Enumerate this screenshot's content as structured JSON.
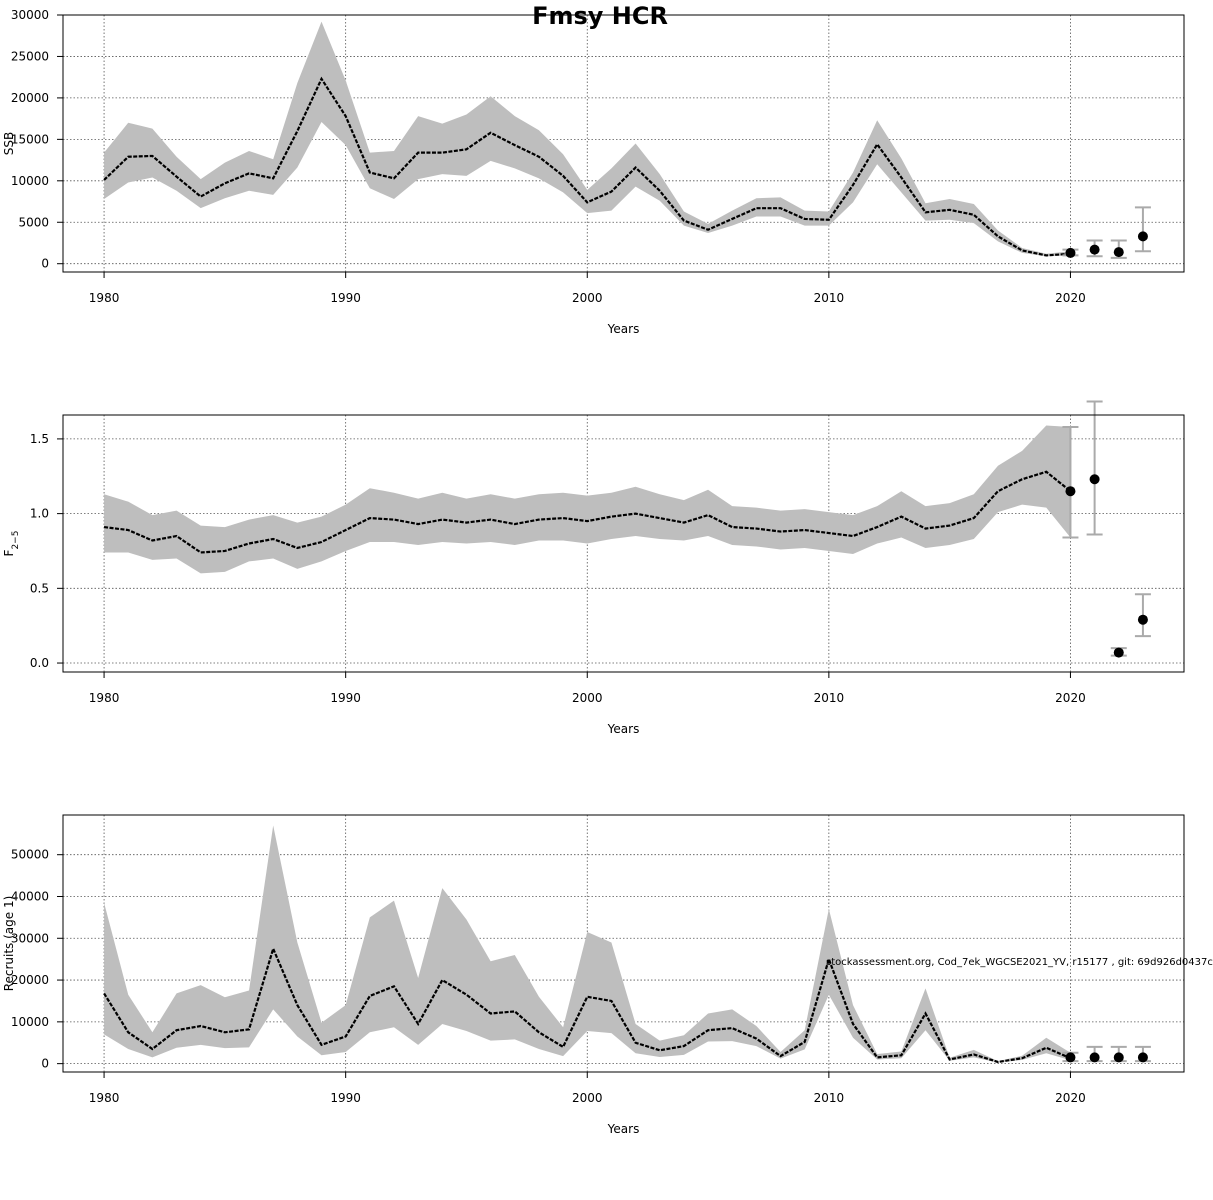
{
  "title": "Fmsy HCR",
  "footer_stamp": "stockassessment.org, Cod_7ek_WGCSE2021_YV, r15177 , git: 69d926d0437c",
  "colors": {
    "band": "#bebebe",
    "line": "#000000",
    "grid": "#555555",
    "errorbar": "#aaaaaa"
  },
  "chart_data": [
    {
      "type": "line",
      "xlabel": "Years",
      "ylabel": "SSB",
      "ylim": [
        -1000,
        30000
      ],
      "xlim": [
        1978.3,
        2024.7
      ],
      "yticks": [
        0,
        5000,
        10000,
        15000,
        20000,
        25000,
        30000
      ],
      "ytick_labels": [
        "0",
        "5000",
        "10000",
        "15000",
        "20000",
        "25000",
        "30000"
      ],
      "xticks": [
        1980,
        1990,
        2000,
        2010,
        2020
      ],
      "xtick_labels": [
        "1980",
        "1990",
        "2000",
        "2010",
        "2020"
      ],
      "grid": true,
      "years": [
        1980,
        1981,
        1982,
        1983,
        1984,
        1985,
        1986,
        1987,
        1988,
        1989,
        1990,
        1991,
        1992,
        1993,
        1994,
        1995,
        1996,
        1997,
        1998,
        1999,
        2000,
        2001,
        2002,
        2003,
        2004,
        2005,
        2006,
        2007,
        2008,
        2009,
        2010,
        2011,
        2012,
        2013,
        2014,
        2015,
        2016,
        2017,
        2018,
        2019,
        2020
      ],
      "estimate": [
        10100,
        12900,
        13000,
        10500,
        8100,
        9700,
        10900,
        10300,
        16000,
        22300,
        17800,
        11000,
        10300,
        13400,
        13400,
        13800,
        15800,
        14300,
        12900,
        10600,
        7400,
        8700,
        11600,
        8800,
        5200,
        4100,
        5400,
        6700,
        6700,
        5400,
        5300,
        9500,
        14400,
        10400,
        6200,
        6500,
        5900,
        3300,
        1600,
        1000,
        1200
      ],
      "lower": [
        7800,
        9800,
        10400,
        8800,
        6700,
        7900,
        8800,
        8300,
        11600,
        17100,
        14300,
        9100,
        7800,
        10200,
        10800,
        10600,
        12400,
        11500,
        10300,
        8600,
        6100,
        6400,
        9300,
        7600,
        4600,
        3700,
        4600,
        5700,
        5700,
        4600,
        4600,
        7400,
        12000,
        8600,
        5200,
        5300,
        4900,
        2700,
        1300,
        900,
        1000
      ],
      "upper": [
        13400,
        17000,
        16300,
        12900,
        10200,
        12200,
        13600,
        12600,
        21800,
        29200,
        22100,
        13400,
        13600,
        17800,
        16900,
        18000,
        20200,
        17800,
        16100,
        13200,
        8900,
        11500,
        14500,
        10800,
        6300,
        4800,
        6400,
        7900,
        8000,
        6400,
        6300,
        11000,
        17300,
        12700,
        7300,
        7800,
        7200,
        4000,
        1900,
        1200,
        1500
      ],
      "points": [
        {
          "x": 2020,
          "y": 1300,
          "low": 1000,
          "high": 1700
        },
        {
          "x": 2021,
          "y": 1700,
          "low": 900,
          "high": 2800
        },
        {
          "x": 2022,
          "y": 1400,
          "low": 700,
          "high": 2800
        },
        {
          "x": 2023,
          "y": 3300,
          "low": 1500,
          "high": 6800
        }
      ]
    },
    {
      "type": "line",
      "xlabel": "Years",
      "ylabel": "F",
      "ylabel_sub": "2−5",
      "ylim": [
        -0.06,
        1.66
      ],
      "xlim": [
        1978.3,
        2024.7
      ],
      "yticks": [
        0.0,
        0.5,
        1.0,
        1.5
      ],
      "ytick_labels": [
        "0.0",
        "0.5",
        "1.0",
        "1.5"
      ],
      "xticks": [
        1980,
        1990,
        2000,
        2010,
        2020
      ],
      "xtick_labels": [
        "1980",
        "1990",
        "2000",
        "2010",
        "2020"
      ],
      "grid": true,
      "years": [
        1980,
        1981,
        1982,
        1983,
        1984,
        1985,
        1986,
        1987,
        1988,
        1989,
        1990,
        1991,
        1992,
        1993,
        1994,
        1995,
        1996,
        1997,
        1998,
        1999,
        2000,
        2001,
        2002,
        2003,
        2004,
        2005,
        2006,
        2007,
        2008,
        2009,
        2010,
        2011,
        2012,
        2013,
        2014,
        2015,
        2016,
        2017,
        2018,
        2019,
        2020
      ],
      "estimate": [
        0.91,
        0.89,
        0.82,
        0.85,
        0.74,
        0.75,
        0.8,
        0.83,
        0.77,
        0.81,
        0.89,
        0.97,
        0.96,
        0.93,
        0.96,
        0.94,
        0.96,
        0.93,
        0.96,
        0.97,
        0.95,
        0.98,
        1.0,
        0.97,
        0.94,
        0.99,
        0.91,
        0.9,
        0.88,
        0.89,
        0.87,
        0.85,
        0.91,
        0.98,
        0.9,
        0.92,
        0.97,
        1.15,
        1.23,
        1.28,
        1.15
      ],
      "lower": [
        0.74,
        0.74,
        0.69,
        0.7,
        0.6,
        0.61,
        0.68,
        0.7,
        0.63,
        0.68,
        0.75,
        0.81,
        0.81,
        0.79,
        0.81,
        0.8,
        0.81,
        0.79,
        0.82,
        0.82,
        0.8,
        0.83,
        0.85,
        0.83,
        0.82,
        0.85,
        0.79,
        0.78,
        0.76,
        0.77,
        0.75,
        0.73,
        0.8,
        0.84,
        0.77,
        0.79,
        0.83,
        1.01,
        1.06,
        1.04,
        0.84
      ],
      "upper": [
        1.13,
        1.08,
        0.99,
        1.02,
        0.92,
        0.91,
        0.96,
        0.99,
        0.94,
        0.98,
        1.06,
        1.17,
        1.14,
        1.1,
        1.14,
        1.1,
        1.13,
        1.1,
        1.13,
        1.14,
        1.12,
        1.14,
        1.18,
        1.13,
        1.09,
        1.16,
        1.05,
        1.04,
        1.02,
        1.03,
        1.01,
        0.99,
        1.05,
        1.15,
        1.05,
        1.07,
        1.13,
        1.32,
        1.42,
        1.59,
        1.58
      ],
      "points": [
        {
          "x": 2020,
          "y": 1.15,
          "low": 0.84,
          "high": 1.58
        },
        {
          "x": 2021,
          "y": 1.23,
          "low": 0.86,
          "high": 1.75
        },
        {
          "x": 2022,
          "y": 0.07,
          "low": 0.05,
          "high": 0.1
        },
        {
          "x": 2023,
          "y": 0.29,
          "low": 0.18,
          "high": 0.46
        }
      ]
    },
    {
      "type": "line",
      "xlabel": "Years",
      "ylabel": "Recruits (age 1)",
      "ylim": [
        -2000,
        59500
      ],
      "xlim": [
        1978.3,
        2024.7
      ],
      "yticks": [
        0,
        10000,
        20000,
        30000,
        40000,
        50000
      ],
      "ytick_labels": [
        "0",
        "10000",
        "20000",
        "30000",
        "40000",
        "50000"
      ],
      "xticks": [
        1980,
        1990,
        2000,
        2010,
        2020
      ],
      "xtick_labels": [
        "1980",
        "1990",
        "2000",
        "2010",
        "2020"
      ],
      "grid": true,
      "years": [
        1980,
        1981,
        1982,
        1983,
        1984,
        1985,
        1986,
        1987,
        1988,
        1989,
        1990,
        1991,
        1992,
        1993,
        1994,
        1995,
        1996,
        1997,
        1998,
        1999,
        2000,
        2001,
        2002,
        2003,
        2004,
        2005,
        2006,
        2007,
        2008,
        2009,
        2010,
        2011,
        2012,
        2013,
        2014,
        2015,
        2016,
        2017,
        2018,
        2019,
        2020
      ],
      "estimate": [
        16800,
        7500,
        3500,
        8000,
        9000,
        7500,
        8200,
        27500,
        14000,
        4500,
        6500,
        16200,
        18500,
        9500,
        20000,
        16500,
        12000,
        12500,
        7500,
        4000,
        16000,
        15000,
        5000,
        3200,
        4200,
        8000,
        8500,
        6000,
        1800,
        5200,
        25000,
        9500,
        1500,
        2000,
        12000,
        1000,
        2200,
        400,
        1300,
        3800,
        1300
      ],
      "lower": [
        7000,
        3500,
        1500,
        3800,
        4500,
        3700,
        3900,
        13000,
        6500,
        2000,
        2800,
        7500,
        8700,
        4500,
        9500,
        7800,
        5500,
        5800,
        3500,
        1800,
        7800,
        7300,
        2500,
        1600,
        2100,
        5300,
        5400,
        4200,
        1200,
        3400,
        16500,
        6200,
        1000,
        1300,
        8000,
        700,
        1500,
        250,
        900,
        2500,
        800
      ],
      "upper": [
        38500,
        16500,
        7500,
        16800,
        18800,
        15900,
        17500,
        57000,
        29000,
        9800,
        14000,
        35000,
        39000,
        20500,
        42000,
        34500,
        24500,
        26000,
        16000,
        8700,
        31500,
        29000,
        9500,
        5500,
        6800,
        12000,
        13000,
        9000,
        2800,
        8000,
        37000,
        14000,
        2300,
        2900,
        18000,
        1400,
        3300,
        600,
        1900,
        6200,
        2600
      ],
      "points": [
        {
          "x": 2020,
          "y": 1500,
          "low": 600,
          "high": 2600
        },
        {
          "x": 2021,
          "y": 1500,
          "low": 600,
          "high": 4000
        },
        {
          "x": 2022,
          "y": 1500,
          "low": 600,
          "high": 4000
        },
        {
          "x": 2023,
          "y": 1500,
          "low": 600,
          "high": 4000
        }
      ]
    }
  ]
}
